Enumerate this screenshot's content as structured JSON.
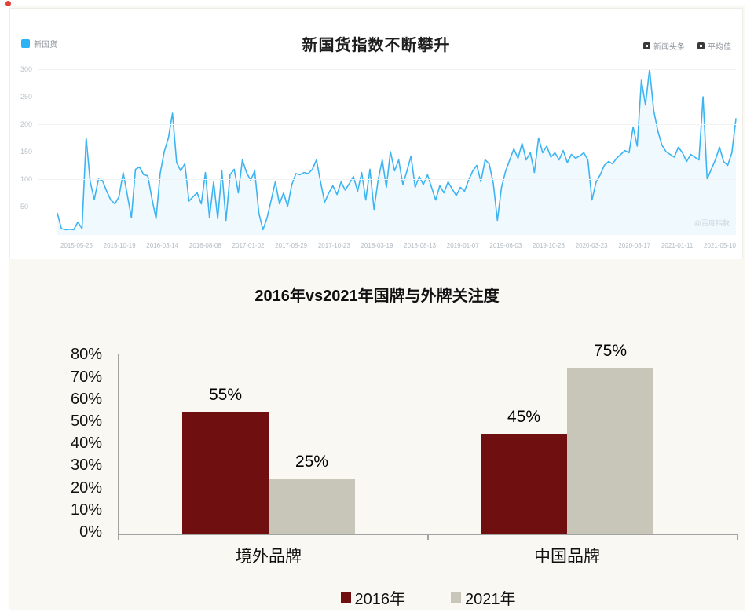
{
  "page": {
    "background": "#ffffff",
    "panel_background": "#faf8f2",
    "recording_dot_color": "#e0403a"
  },
  "chart_data": [
    {
      "type": "line",
      "title": "新国货指数不断攀升",
      "legend": {
        "selected": {
          "label": "新国货",
          "color": "#2db3f5"
        },
        "unselected": [
          {
            "label": "新闻头条"
          },
          {
            "label": "平均值"
          }
        ]
      },
      "watermark": "@百度指数",
      "line_color": "#3db4f2",
      "area_opacity": 0.08,
      "grid": true,
      "ylim": [
        0,
        300
      ],
      "y_ticks": [
        300,
        250,
        200,
        150,
        100,
        50
      ],
      "x_tick_labels": [
        "2015-05-25",
        "2015-10-19",
        "2016-03-14",
        "2016-08-08",
        "2017-01-02",
        "2017-05-29",
        "2017-10-23",
        "2018-03-19",
        "2018-08-13",
        "2019-01-07",
        "2019-06-03",
        "2019-10-28",
        "2020-03-23",
        "2020-08-17",
        "2021-01-11",
        "2021-05-10"
      ],
      "series": [
        {
          "name": "新国货",
          "values": [
            38,
            10,
            8,
            9,
            8,
            22,
            10,
            175,
            95,
            63,
            100,
            97,
            78,
            62,
            55,
            68,
            112,
            72,
            30,
            118,
            122,
            108,
            106,
            65,
            28,
            110,
            150,
            175,
            220,
            130,
            115,
            128,
            60,
            68,
            75,
            55,
            112,
            30,
            95,
            28,
            115,
            25,
            108,
            118,
            75,
            135,
            112,
            98,
            115,
            38,
            8,
            30,
            62,
            95,
            55,
            75,
            50,
            90,
            110,
            108,
            112,
            110,
            118,
            135,
            95,
            58,
            75,
            88,
            72,
            95,
            80,
            92,
            105,
            78,
            112,
            62,
            118,
            45,
            98,
            135,
            85,
            150,
            115,
            135,
            90,
            115,
            142,
            85,
            105,
            90,
            108,
            85,
            62,
            88,
            75,
            95,
            82,
            70,
            85,
            78,
            98,
            115,
            125,
            95,
            135,
            128,
            92,
            25,
            85,
            115,
            135,
            155,
            138,
            165,
            135,
            148,
            112,
            175,
            148,
            160,
            140,
            148,
            135,
            152,
            130,
            145,
            138,
            142,
            148,
            135,
            62,
            95,
            108,
            125,
            132,
            128,
            138,
            145,
            152,
            148,
            195,
            160,
            280,
            235,
            300,
            225,
            188,
            162,
            150,
            145,
            140,
            158,
            148,
            132,
            145,
            140,
            135,
            250,
            100,
            118,
            135,
            158,
            132,
            125,
            148,
            210
          ]
        }
      ]
    },
    {
      "type": "bar",
      "title": "2016年vs2021年国牌与外牌关注度",
      "categories": [
        "境外品牌",
        "中国品牌"
      ],
      "series": [
        {
          "name": "2016年",
          "color": "#700f0f",
          "values": [
            55,
            45
          ]
        },
        {
          "name": "2021年",
          "color": "#c8c5b9",
          "values": [
            25,
            75
          ]
        }
      ],
      "value_labels": [
        "55%",
        "25%",
        "45%",
        "75%"
      ],
      "ylim": [
        0,
        80
      ],
      "y_tick_labels": [
        "80%",
        "70%",
        "60%",
        "50%",
        "40%",
        "30%",
        "20%",
        "10%",
        "0%"
      ],
      "axis_color": "#a3a3a3",
      "grid": false,
      "legend_position": "bottom"
    }
  ]
}
